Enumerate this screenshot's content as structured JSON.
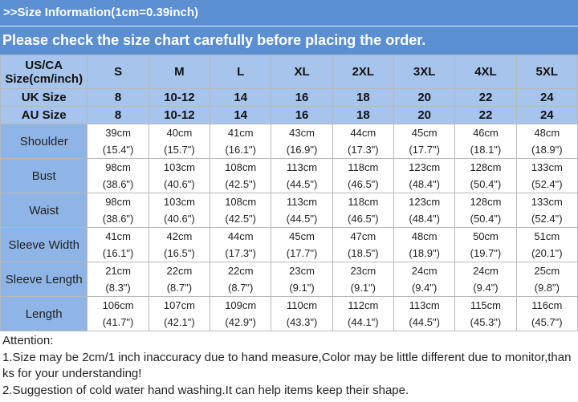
{
  "header": {
    "line1": ">>Size Information(1cm=0.39inch)",
    "line2": "Please check the size chart carefully before placing the order."
  },
  "table": {
    "corner": "US/CA Size(cm/inch)",
    "sizes": [
      "S",
      "M",
      "L",
      "XL",
      "2XL",
      "3XL",
      "4XL",
      "5XL"
    ],
    "size_rows": [
      {
        "label": "UK Size",
        "values": [
          "8",
          "10-12",
          "14",
          "16",
          "18",
          "20",
          "22",
          "24"
        ]
      },
      {
        "label": "AU Size",
        "values": [
          "8",
          "10-12",
          "14",
          "16",
          "18",
          "20",
          "22",
          "24"
        ]
      }
    ],
    "rows": [
      {
        "label": "Shoulder",
        "cm": [
          "39cm",
          "40cm",
          "41cm",
          "43cm",
          "44cm",
          "45cm",
          "46cm",
          "48cm"
        ],
        "inch": [
          "(15.4\")",
          "(15.7\")",
          "(16.1\")",
          "(16.9\")",
          "(17.3\")",
          "(17.7\")",
          "(18.1\")",
          "(18.9\")"
        ]
      },
      {
        "label": "Bust",
        "cm": [
          "98cm",
          "103cm",
          "108cm",
          "113cm",
          "118cm",
          "123cm",
          "128cm",
          "133cm"
        ],
        "inch": [
          "(38.6\")",
          "(40.6\")",
          "(42.5\")",
          "(44.5\")",
          "(46.5\")",
          "(48.4\")",
          "(50.4\")",
          "(52.4\")"
        ]
      },
      {
        "label": "Waist",
        "cm": [
          "98cm",
          "103cm",
          "108cm",
          "113cm",
          "118cm",
          "123cm",
          "128cm",
          "133cm"
        ],
        "inch": [
          "(38.6\")",
          "(40.6\")",
          "(42.5\")",
          "(44.5\")",
          "(46.5\")",
          "(48.4\")",
          "(50.4\")",
          "(52.4\")"
        ]
      },
      {
        "label": "Sleeve Width",
        "cm": [
          "41cm",
          "42cm",
          "44cm",
          "45cm",
          "47cm",
          "48cm",
          "50cm",
          "51cm"
        ],
        "inch": [
          "(16.1\")",
          "(16.5\")",
          "(17.3\")",
          "(17.7\")",
          "(18.5\")",
          "(18.9\")",
          "(19.7\")",
          "(20.1\")"
        ]
      },
      {
        "label": "Sleeve Length",
        "cm": [
          "21cm",
          "22cm",
          "22cm",
          "23cm",
          "23cm",
          "24cm",
          "24cm",
          "25cm"
        ],
        "inch": [
          "(8.3\")",
          "(8.7\")",
          "(8.7\")",
          "(9.1\")",
          "(9.1\")",
          "(9.4\")",
          "(9.4\")",
          "(9.8\")"
        ]
      },
      {
        "label": "Length",
        "cm": [
          "106cm",
          "107cm",
          "109cm",
          "110cm",
          "112cm",
          "113cm",
          "115cm",
          "116cm"
        ],
        "inch": [
          "(41.7\")",
          "(42.1\")",
          "(42.9\")",
          "(43.3\")",
          "(44.1\")",
          "(44.5\")",
          "(45.3\")",
          "(45.7\")"
        ]
      }
    ]
  },
  "notes": [
    "Attention:",
    "1.Size may be 2cm/1 inch inaccuracy due to hand measure,Color may be little different due to monitor,thanks for your understanding!",
    "2.Suggestion of cold water hand washing.It can help items keep their shape."
  ]
}
